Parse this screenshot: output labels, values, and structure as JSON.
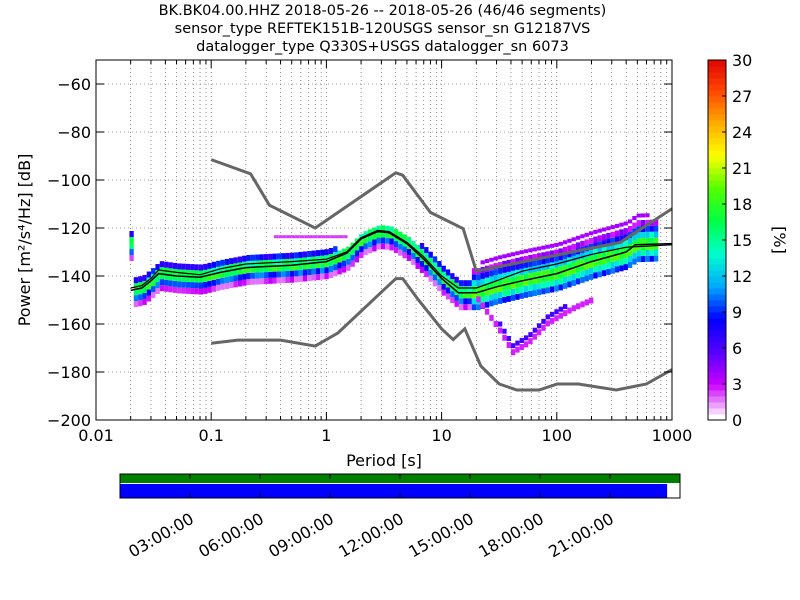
{
  "title": {
    "line1": "BK.BK04.00.HHZ   2018-05-26 -- 2018-05-26  (46/46 segments)",
    "line2": "sensor_type REFTEK151B-120USGS sensor_sn G12187VS",
    "line3": "datalogger_type Q330S+USGS datalogger_sn 6073"
  },
  "chart_data": {
    "type": "heatmap",
    "xlabel": "Period [s]",
    "ylabel": "Power [m²/s⁴/Hz] [dB]",
    "xscale": "log",
    "xlim": [
      0.01,
      1000
    ],
    "ylim": [
      -200,
      -50
    ],
    "x_ticks": [
      0.01,
      0.1,
      1,
      10,
      100,
      1000
    ],
    "x_tick_labels": [
      "0.01",
      "0.1",
      "1",
      "10",
      "100",
      "1000"
    ],
    "y_ticks": [
      -60,
      -80,
      -100,
      -120,
      -140,
      -160,
      -180,
      -200
    ],
    "y_tick_labels": [
      "−60",
      "−80",
      "−100",
      "−120",
      "−140",
      "−160",
      "−180",
      "−200"
    ],
    "grid": true,
    "colorbar": {
      "label": "[%]",
      "min": 0,
      "max": 30,
      "ticks": [
        0,
        3,
        6,
        9,
        12,
        15,
        18,
        21,
        24,
        27,
        30
      ],
      "colors": [
        "#ffffff",
        "#cc00ff",
        "#5500ff",
        "#0000ff",
        "#00aaff",
        "#00ffcc",
        "#00ff44",
        "#55ff00",
        "#ffff00",
        "#ffaa00",
        "#ff4400",
        "#dd0000"
      ]
    },
    "noise_models": [
      {
        "points": [
          [
            0.1,
            -91.5
          ],
          [
            0.22,
            -97.4
          ],
          [
            0.32,
            -110.5
          ],
          [
            0.8,
            -120
          ],
          [
            4.0,
            -97
          ],
          [
            4.6,
            -98
          ],
          [
            8.0,
            -113.5
          ],
          [
            15.4,
            -120.3
          ],
          [
            20.0,
            -138
          ],
          [
            354.8,
            -126
          ],
          [
            1000,
            -112
          ]
        ]
      },
      {
        "points": [
          [
            0.1,
            -168
          ],
          [
            0.17,
            -166.7
          ],
          [
            0.4,
            -166.7
          ],
          [
            0.8,
            -169.2
          ],
          [
            1.26,
            -163.7
          ],
          [
            4.0,
            -141.1
          ],
          [
            4.6,
            -141.1
          ],
          [
            6.3,
            -150
          ],
          [
            10,
            -162
          ],
          [
            12.6,
            -166.5
          ],
          [
            15.9,
            -162
          ],
          [
            21.9,
            -177.5
          ],
          [
            31.6,
            -185
          ],
          [
            45,
            -187.5
          ],
          [
            70,
            -187.5
          ],
          [
            101,
            -185
          ],
          [
            154,
            -185
          ],
          [
            328,
            -187.5
          ],
          [
            600,
            -185
          ],
          [
            1000,
            -179
          ]
        ]
      }
    ],
    "mean_curve": [
      [
        0.02,
        -145
      ],
      [
        0.025,
        -144
      ],
      [
        0.03,
        -141
      ],
      [
        0.035,
        -137.5
      ],
      [
        0.05,
        -138.5
      ],
      [
        0.08,
        -139.5
      ],
      [
        0.12,
        -137
      ],
      [
        0.2,
        -135
      ],
      [
        0.5,
        -134
      ],
      [
        1,
        -133
      ],
      [
        1.5,
        -130
      ],
      [
        2,
        -124
      ],
      [
        2.8,
        -121
      ],
      [
        3.5,
        -121.5
      ],
      [
        5,
        -126
      ],
      [
        7,
        -132
      ],
      [
        10,
        -140
      ],
      [
        14,
        -145
      ],
      [
        20,
        -145
      ],
      [
        30,
        -142
      ],
      [
        50,
        -138
      ],
      [
        100,
        -135
      ],
      [
        200,
        -131
      ],
      [
        400,
        -128
      ],
      [
        1000,
        -127
      ]
    ],
    "mode_curve": [
      [
        0.02,
        -146
      ],
      [
        0.025,
        -145
      ],
      [
        0.03,
        -142
      ],
      [
        0.035,
        -139
      ],
      [
        0.05,
        -140
      ],
      [
        0.08,
        -140.5
      ],
      [
        0.12,
        -138.5
      ],
      [
        0.2,
        -136.5
      ],
      [
        0.5,
        -135.5
      ],
      [
        1,
        -134
      ],
      [
        1.5,
        -130.5
      ],
      [
        2,
        -124.5
      ],
      [
        2.8,
        -121.5
      ],
      [
        3.5,
        -122
      ],
      [
        5,
        -126.5
      ],
      [
        7,
        -133
      ],
      [
        10,
        -141
      ],
      [
        14,
        -147
      ],
      [
        20,
        -147
      ],
      [
        30,
        -144.5
      ],
      [
        50,
        -142
      ],
      [
        100,
        -139
      ],
      [
        200,
        -134
      ],
      [
        400,
        -130
      ],
      [
        480,
        -127
      ],
      [
        1000,
        -126.5
      ]
    ],
    "low_branch": [
      [
        20,
        -150
      ],
      [
        30,
        -162
      ],
      [
        40,
        -172
      ],
      [
        55,
        -168
      ],
      [
        80,
        -160
      ],
      [
        130,
        -154
      ],
      [
        200,
        -150
      ]
    ],
    "time_axis": {
      "labels": [
        "03:00:00",
        "06:00:00",
        "09:00:00",
        "12:00:00",
        "15:00:00",
        "18:00:00",
        "21:00:00"
      ],
      "coverage_fraction": 0.977,
      "top_band_color": "#008000",
      "coverage_color": "#0000ff"
    }
  }
}
